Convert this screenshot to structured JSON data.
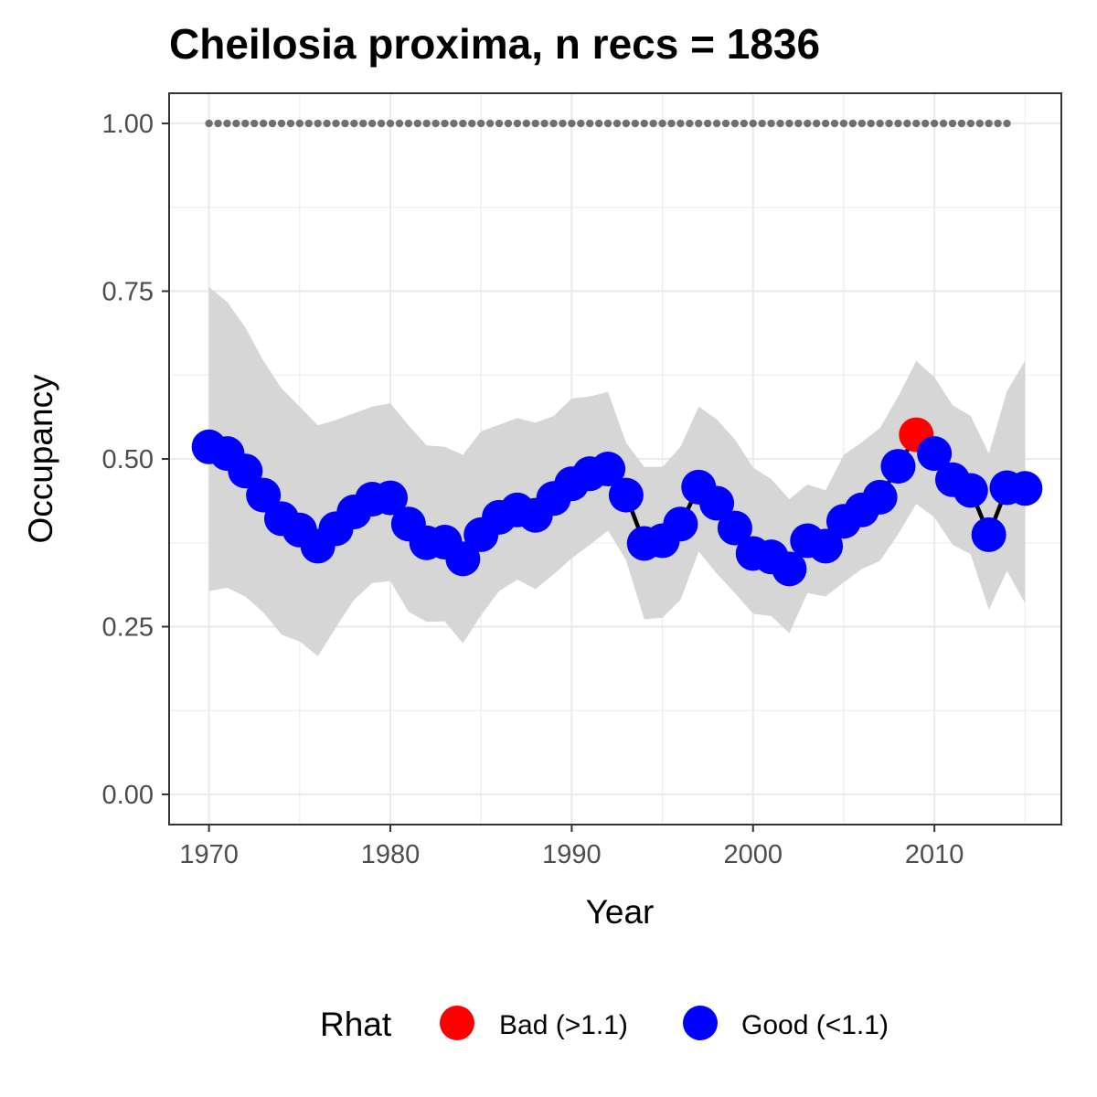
{
  "chart_data": {
    "type": "line",
    "title": "Cheilosia proxima, n recs = 1836",
    "xlabel": "Year",
    "ylabel": "Occupancy",
    "xlim": [
      1967.8,
      1917.0
    ],
    "ylim": [
      -0.045,
      1.045
    ],
    "x_ticks": [
      1970,
      1980,
      1990,
      2000,
      2010
    ],
    "y_ticks": [
      0.0,
      0.25,
      0.5,
      0.75,
      1.0
    ],
    "y_tick_labels": [
      "0.00",
      "0.25",
      "0.50",
      "0.75",
      "1.00"
    ],
    "grid": true,
    "colors": {
      "bad": "#ff0000",
      "good": "#0000ff",
      "ribbon": "#d6d6d6",
      "line": "#000000",
      "reference": "#707070",
      "grid": "#ebebeb",
      "panel_border": "#333333"
    },
    "legend": {
      "title": "Rhat",
      "placement": "bottom",
      "items": [
        {
          "label": "Bad (>1.1)",
          "color": "#ff0000"
        },
        {
          "label": "Good (<1.1)",
          "color": "#0000ff"
        }
      ]
    },
    "series": [
      {
        "years": [
          1970,
          1971,
          1972,
          1973,
          1974,
          1975,
          1976,
          1977,
          1978,
          1979,
          1980,
          1981,
          1982,
          1983,
          1984,
          1985,
          1986,
          1987,
          1988,
          1989,
          1990,
          1991,
          1992,
          1993,
          1994,
          1995,
          1996,
          1997,
          1998,
          1999,
          2000,
          2001,
          2002,
          2003,
          2004,
          2005,
          2006,
          2007,
          2008,
          2009,
          2010,
          2011,
          2012,
          2013,
          2014,
          2015
        ],
        "mean": [
          0.518,
          0.508,
          0.482,
          0.446,
          0.411,
          0.394,
          0.37,
          0.396,
          0.421,
          0.44,
          0.442,
          0.403,
          0.375,
          0.376,
          0.351,
          0.387,
          0.413,
          0.424,
          0.416,
          0.441,
          0.463,
          0.478,
          0.485,
          0.446,
          0.374,
          0.378,
          0.403,
          0.458,
          0.434,
          0.397,
          0.359,
          0.354,
          0.336,
          0.378,
          0.37,
          0.407,
          0.424,
          0.443,
          0.489,
          0.536,
          0.508,
          0.469,
          0.453,
          0.387,
          0.457,
          0.456
        ],
        "lower": [
          0.303,
          0.308,
          0.295,
          0.271,
          0.238,
          0.228,
          0.206,
          0.249,
          0.29,
          0.315,
          0.318,
          0.272,
          0.257,
          0.258,
          0.225,
          0.267,
          0.303,
          0.32,
          0.306,
          0.328,
          0.352,
          0.372,
          0.393,
          0.349,
          0.261,
          0.263,
          0.29,
          0.362,
          0.329,
          0.3,
          0.269,
          0.266,
          0.24,
          0.3,
          0.295,
          0.316,
          0.336,
          0.348,
          0.388,
          0.433,
          0.413,
          0.372,
          0.358,
          0.275,
          0.333,
          0.285
        ],
        "upper": [
          0.756,
          0.734,
          0.696,
          0.646,
          0.605,
          0.578,
          0.55,
          0.558,
          0.568,
          0.578,
          0.583,
          0.55,
          0.52,
          0.518,
          0.506,
          0.541,
          0.551,
          0.561,
          0.554,
          0.564,
          0.59,
          0.593,
          0.6,
          0.524,
          0.488,
          0.488,
          0.518,
          0.578,
          0.559,
          0.529,
          0.487,
          0.47,
          0.44,
          0.462,
          0.453,
          0.506,
          0.525,
          0.546,
          0.593,
          0.646,
          0.622,
          0.58,
          0.564,
          0.508,
          0.601,
          0.646
        ],
        "rhat_status": [
          "good",
          "good",
          "good",
          "good",
          "good",
          "good",
          "good",
          "good",
          "good",
          "good",
          "good",
          "good",
          "good",
          "good",
          "good",
          "good",
          "good",
          "good",
          "good",
          "good",
          "good",
          "good",
          "good",
          "good",
          "good",
          "good",
          "good",
          "good",
          "good",
          "good",
          "good",
          "good",
          "good",
          "good",
          "good",
          "good",
          "good",
          "good",
          "good",
          "bad",
          "good",
          "good",
          "good",
          "good",
          "good",
          "good"
        ]
      }
    ],
    "reference_line": {
      "value": 1.0,
      "years": [
        1970,
        1971,
        1972,
        1973,
        1974,
        1975,
        1976,
        1977,
        1978,
        1979,
        1980,
        1981,
        1982,
        1983,
        1984,
        1985,
        1986,
        1987,
        1988,
        1989,
        1990,
        1991,
        1992,
        1993,
        1994,
        1995,
        1996,
        1997,
        1998,
        1999,
        2000,
        2001,
        2002,
        2003,
        2004,
        2005,
        2006,
        2007,
        2008,
        2009,
        2010,
        2011,
        2012,
        2013,
        2014
      ]
    }
  }
}
